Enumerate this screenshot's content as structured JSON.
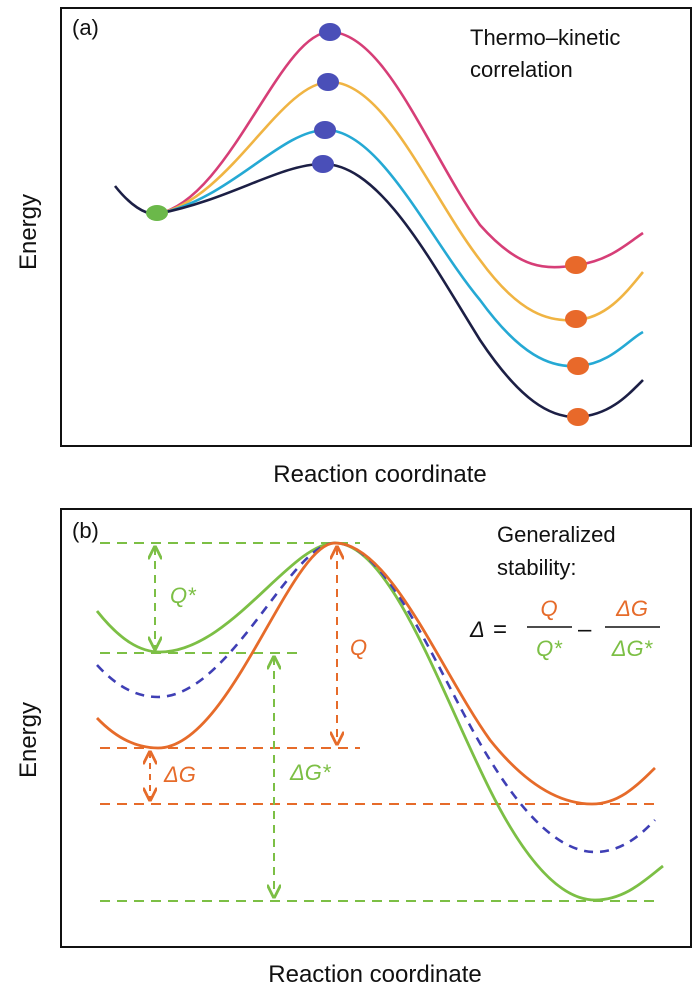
{
  "panel_a": {
    "label": "(a)",
    "title_line1": "Thermo–kinetic",
    "title_line2": "correlation",
    "ylabel": "Energy",
    "xlabel": "Reaction coordinate"
  },
  "panel_b": {
    "label": "(b)",
    "note_line1": "Generalized",
    "note_line2": "stability:",
    "ylabel": "Energy",
    "xlabel": "Reaction coordinate",
    "q_star": "Q*",
    "q": "Q",
    "delta_g": "ΔG",
    "delta_g_star": "ΔG*",
    "formula": {
      "lhs": "Δ",
      "eq": "=",
      "num1": "Q",
      "den1": "Q*",
      "minus": "–",
      "num2": "ΔG",
      "den2": "ΔG*"
    }
  },
  "colors": {
    "pink": "#d63e77",
    "yellow": "#f0b443",
    "cyan": "#25a9d4",
    "navy": "#1c1f45",
    "green": "#6bb84a",
    "blue_dot": "#4a4fb8",
    "orange": "#e8692a",
    "green_b": "#7cbf45",
    "orange_b": "#e66b2a",
    "dashed_b": "#3f3fb5"
  }
}
